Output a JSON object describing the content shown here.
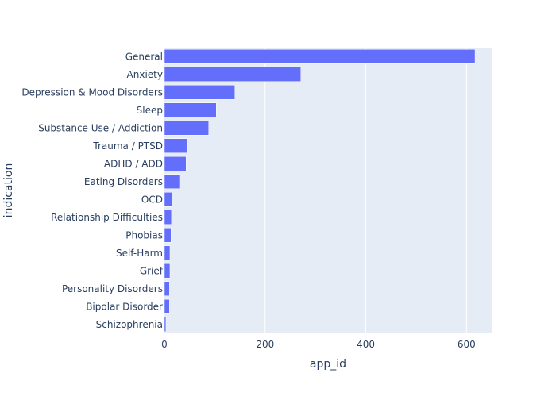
{
  "chart_data": {
    "type": "bar",
    "orientation": "horizontal",
    "xlabel": "app_id",
    "ylabel": "indication",
    "xlim": [
      0,
      650
    ],
    "x_ticks": [
      0,
      200,
      400,
      600
    ],
    "grid": true,
    "colors": {
      "bar": "#636efa",
      "plot_background": "#e5ecf6",
      "grid": "#ffffff",
      "text": "#2a3f5f"
    },
    "categories": [
      "General",
      "Anxiety",
      "Depression & Mood Disorders",
      "Sleep",
      "Substance Use / Addiction",
      "Trauma / PTSD",
      "ADHD / ADD",
      "Eating Disorders",
      "OCD",
      "Relationship Difficulties",
      "Phobias",
      "Self-Harm",
      "Grief",
      "Personality Disorders",
      "Bipolar Disorder",
      "Schizophrenia"
    ],
    "values": [
      617,
      271,
      140,
      103,
      88,
      46,
      43,
      30,
      15,
      14,
      13,
      11,
      11,
      10,
      10,
      3
    ]
  }
}
